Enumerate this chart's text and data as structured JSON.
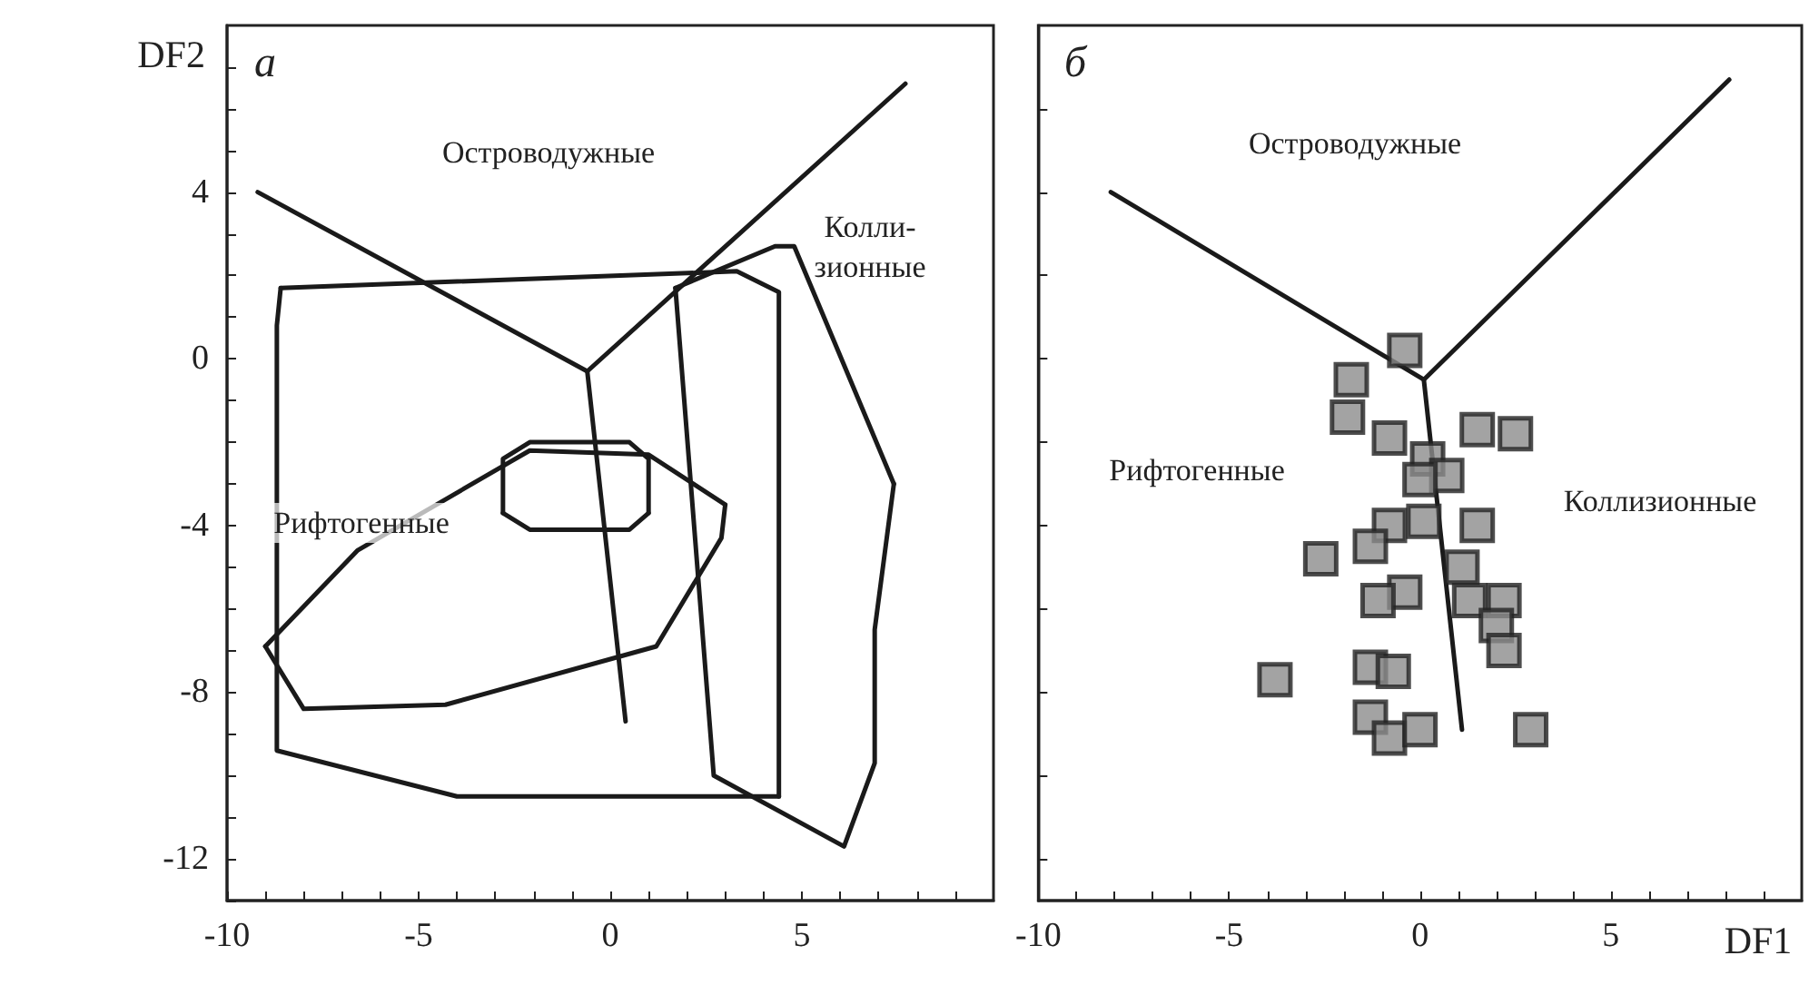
{
  "chart_data": [
    {
      "type": "line",
      "title": "а",
      "ylabel": "DF2",
      "xlim": [
        -10,
        10
      ],
      "ylim": [
        -13,
        8
      ],
      "xticks": [
        -10,
        {
          "value": -9,
          "label": null
        },
        {
          "value": -8,
          "label": null
        },
        {
          "value": -7,
          "label": null
        },
        {
          "value": -6,
          "label": null
        },
        -5,
        {
          "value": -4,
          "label": null
        },
        {
          "value": -3,
          "label": null
        },
        {
          "value": -2,
          "label": null
        },
        {
          "value": -1,
          "label": null
        },
        0,
        {
          "value": 1,
          "label": null
        },
        {
          "value": 2,
          "label": null
        },
        {
          "value": 3,
          "label": null
        },
        {
          "value": 4,
          "label": null
        },
        5,
        {
          "value": 6,
          "label": null
        },
        {
          "value": 7,
          "label": null
        },
        {
          "value": 8,
          "label": null
        },
        {
          "value": 9,
          "label": null
        }
      ],
      "yticks": [
        {
          "value": -13,
          "label": null
        },
        -12,
        {
          "value": -11,
          "label": null
        },
        {
          "value": -10,
          "label": null
        },
        {
          "value": -9,
          "label": null
        },
        -8,
        {
          "value": -7,
          "label": null
        },
        {
          "value": -6,
          "label": null
        },
        {
          "value": -5,
          "label": null
        },
        -4,
        {
          "value": -3,
          "label": null
        },
        {
          "value": -2,
          "label": null
        },
        {
          "value": -1,
          "label": null
        },
        0,
        {
          "value": 1,
          "label": null
        },
        {
          "value": 2,
          "label": null
        },
        {
          "value": 3,
          "label": null
        },
        4,
        {
          "value": 5,
          "label": null
        },
        {
          "value": 6,
          "label": null
        },
        {
          "value": 7,
          "label": null
        }
      ],
      "grid": false,
      "marker": "none",
      "line_style": "solid",
      "series": [
        {
          "color": "#1a1a1a",
          "x": [
            -9.2,
            -0.6,
            7.7
          ],
          "values": [
            4.0,
            -0.3,
            6.6
          ]
        },
        {
          "color": "#1a1a1a",
          "x": [
            -0.6,
            0.4
          ],
          "values": [
            -0.3,
            -8.7
          ]
        },
        {
          "color": "#1a1a1a",
          "x": [
            -9.0,
            -8.0,
            -4.3,
            1.2,
            2.9,
            3.0
          ],
          "values": [
            -6.9,
            -8.4,
            -8.3,
            -6.9,
            -4.3,
            -3.5
          ]
        },
        {
          "color": "#1a1a1a",
          "x": [
            -9.0,
            -6.6,
            -2.1,
            1.0,
            3.0
          ],
          "values": [
            -6.9,
            -4.6,
            -2.2,
            -2.3,
            -3.5
          ]
        },
        {
          "color": "#1a1a1a",
          "x": [
            -8.6,
            3.3,
            4.4,
            4.4
          ],
          "values": [
            1.7,
            2.1,
            1.6,
            -10.5
          ]
        },
        {
          "color": "#1a1a1a",
          "x": [
            -8.6,
            -8.7,
            -8.7,
            -4.0,
            4.4
          ],
          "values": [
            1.7,
            0.8,
            -9.4,
            -10.5,
            -10.5
          ]
        },
        {
          "color": "#1a1a1a",
          "x": [
            1.7,
            4.3,
            4.8,
            7.4
          ],
          "values": [
            1.7,
            2.7,
            2.7,
            -3.0
          ]
        },
        {
          "color": "#1a1a1a",
          "x": [
            1.7,
            2.7,
            6.1,
            6.9,
            6.9,
            7.4
          ],
          "values": [
            1.7,
            -10.0,
            -11.7,
            -9.7,
            -6.5,
            -3.0
          ]
        },
        {
          "color": "#1a1a1a",
          "x": [
            -2.8,
            -2.8,
            -2.1,
            0.5,
            1.0,
            1.0
          ],
          "values": [
            -3.7,
            -2.4,
            -2.0,
            -2.0,
            -2.4,
            -3.7
          ]
        },
        {
          "color": "#1a1a1a",
          "x": [
            -2.8,
            -2.1,
            0.5,
            1.0
          ],
          "values": [
            -3.7,
            -4.1,
            -4.1,
            -3.7
          ]
        }
      ],
      "annotations": [
        "Островодужные",
        "Колли-\nзионные",
        "Рифтогенные"
      ]
    },
    {
      "type": "line",
      "title": "б",
      "xlabel": "DF1",
      "xlim": [
        -10,
        10
      ],
      "ylim": [
        -13,
        8
      ],
      "tick_labels": "x",
      "xticks": [
        -10,
        {
          "value": -9,
          "label": null
        },
        {
          "value": -8,
          "label": null
        },
        {
          "value": -7,
          "label": null
        },
        {
          "value": -6,
          "label": null
        },
        -5,
        {
          "value": -4,
          "label": null
        },
        {
          "value": -3,
          "label": null
        },
        {
          "value": -2,
          "label": null
        },
        {
          "value": -1,
          "label": null
        },
        0,
        {
          "value": 1,
          "label": null
        },
        {
          "value": 2,
          "label": null
        },
        {
          "value": 3,
          "label": null
        },
        {
          "value": 4,
          "label": null
        },
        5,
        {
          "value": 6,
          "label": null
        },
        {
          "value": 7,
          "label": null
        },
        {
          "value": 8,
          "label": null
        },
        {
          "value": 9,
          "label": null
        }
      ],
      "yticks": [
        {
          "value": -12,
          "label": null
        },
        {
          "value": -10,
          "label": null
        },
        {
          "value": -8,
          "label": null
        },
        {
          "value": -6,
          "label": null
        },
        {
          "value": -4,
          "label": null
        },
        {
          "value": -2,
          "label": null
        },
        {
          "value": 0,
          "label": null
        },
        {
          "value": 2,
          "label": null
        },
        {
          "value": 4,
          "label": null
        },
        {
          "value": 6,
          "label": null
        }
      ],
      "grid": false,
      "line_style": "solid",
      "series": [
        {
          "color": "#1a1a1a",
          "marker": "none",
          "x": [
            -8.1,
            0.1,
            8.1
          ],
          "values": [
            4.0,
            -0.5,
            6.7
          ]
        },
        {
          "color": "#1a1a1a",
          "marker": "none",
          "x": [
            0.1,
            1.1
          ],
          "values": [
            -0.5,
            -8.9
          ]
        },
        {
          "type": "scatter",
          "marker": "square",
          "color": "#8c8c8c",
          "x": [
            -0.4,
            -1.8,
            -1.9,
            -0.8,
            1.5,
            2.5,
            0.2,
            0.7,
            0.0,
            -0.8,
            0.1,
            1.5,
            -2.6,
            -1.3,
            1.1,
            -0.4,
            -1.1,
            1.3,
            2.2,
            2.0,
            2.2,
            -1.3,
            -0.7,
            -3.8,
            -1.3,
            -0.8,
            0.0,
            2.9
          ],
          "values": [
            0.2,
            -0.5,
            -1.4,
            -1.9,
            -1.7,
            -1.8,
            -2.4,
            -2.8,
            -2.9,
            -4.0,
            -3.9,
            -4.0,
            -4.8,
            -4.5,
            -5.0,
            -5.6,
            -5.8,
            -5.8,
            -5.8,
            -6.4,
            -7.0,
            -7.4,
            -7.5,
            -7.7,
            -8.6,
            -9.1,
            -8.9,
            -8.9
          ]
        }
      ],
      "annotations": [
        "Островодужные",
        "Рифтогенные",
        "Коллизионные"
      ]
    }
  ]
}
